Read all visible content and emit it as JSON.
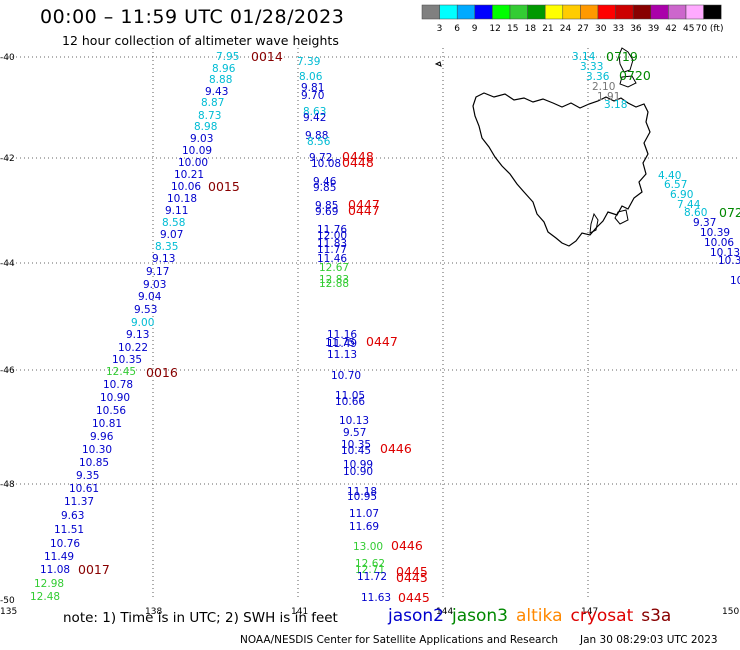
{
  "header": {
    "title": "00:00 – 11:59 UTC 01/28/2023",
    "subtitle": "12 hour collection of altimeter wave heights"
  },
  "colors": {
    "jason2": "#0000cc",
    "jason3": "#008800",
    "altika": "#ff8800",
    "cryosat": "#dd0000",
    "s3a": "#880000",
    "cyan": "#00bcd4",
    "green_light": "#33cc33",
    "gray": "#777777"
  },
  "colorbar": {
    "colors": [
      "#808080",
      "#00ffff",
      "#00aaff",
      "#0000ff",
      "#00ff00",
      "#33cc33",
      "#009900",
      "#ffff00",
      "#ffcc00",
      "#ff9900",
      "#ff0000",
      "#cc0000",
      "#880000",
      "#aa00aa",
      "#cc66cc",
      "#ffaaff",
      "#000000"
    ],
    "labels": [
      "3",
      "6",
      "9",
      "12",
      "15",
      "18",
      "21",
      "24",
      "27",
      "30",
      "33",
      "36",
      "39",
      "42",
      "45",
      "70 (ft)"
    ]
  },
  "axes": {
    "lon_ticks": [
      "135",
      "138",
      "141",
      "144",
      "147",
      "150"
    ],
    "lat_ticks": [
      "-40",
      "-42",
      "-44",
      "-46",
      "-48",
      "-50"
    ]
  },
  "tracks": {
    "track_a": [
      {
        "v": "7.95",
        "c": "cyan"
      },
      {
        "v": "8.96",
        "c": "cyan"
      },
      {
        "v": "8.88",
        "c": "cyan"
      },
      {
        "v": "9.43",
        "c": "blue"
      },
      {
        "v": "8.87",
        "c": "cyan"
      },
      {
        "v": "8.73",
        "c": "cyan"
      },
      {
        "v": "8.98",
        "c": "cyan"
      },
      {
        "v": "9.03",
        "c": "blue"
      },
      {
        "v": "10.09",
        "c": "blue"
      },
      {
        "v": "10.00",
        "c": "blue"
      },
      {
        "v": "10.21",
        "c": "blue"
      },
      {
        "v": "10.06",
        "c": "blue"
      },
      {
        "v": "10.18",
        "c": "blue"
      },
      {
        "v": "9.11",
        "c": "blue"
      },
      {
        "v": "8.58",
        "c": "cyan"
      },
      {
        "v": "9.07",
        "c": "blue"
      },
      {
        "v": "8.35",
        "c": "cyan"
      },
      {
        "v": "9.13",
        "c": "blue"
      },
      {
        "v": "9.17",
        "c": "blue"
      },
      {
        "v": "9.03",
        "c": "blue"
      },
      {
        "v": "9.04",
        "c": "blue"
      },
      {
        "v": "9.53",
        "c": "blue"
      },
      {
        "v": "9.00",
        "c": "cyan"
      },
      {
        "v": "9.13",
        "c": "blue"
      },
      {
        "v": "10.22",
        "c": "blue"
      },
      {
        "v": "10.35",
        "c": "blue"
      },
      {
        "v": "12.45",
        "c": "green"
      },
      {
        "v": "10.78",
        "c": "blue"
      },
      {
        "v": "10.90",
        "c": "blue"
      },
      {
        "v": "10.56",
        "c": "blue"
      },
      {
        "v": "10.81",
        "c": "blue"
      },
      {
        "v": "9.96",
        "c": "blue"
      },
      {
        "v": "10.30",
        "c": "blue"
      },
      {
        "v": "10.85",
        "c": "blue"
      },
      {
        "v": "9.35",
        "c": "blue"
      },
      {
        "v": "10.61",
        "c": "blue"
      },
      {
        "v": "11.37",
        "c": "blue"
      },
      {
        "v": "9.63",
        "c": "blue"
      },
      {
        "v": "11.51",
        "c": "blue"
      },
      {
        "v": "10.76",
        "c": "blue"
      },
      {
        "v": "11.49",
        "c": "blue"
      },
      {
        "v": "11.08",
        "c": "blue"
      },
      {
        "v": "12.98",
        "c": "green"
      },
      {
        "v": "12.48",
        "c": "green"
      }
    ],
    "track_a_times": [
      "0014",
      "0015",
      "0016",
      "0017"
    ],
    "track_b": [
      {
        "v": "7.39",
        "c": "cyan"
      },
      {
        "v": "8.06",
        "c": "cyan"
      },
      {
        "v": "9.81",
        "c": "blue"
      },
      {
        "v": "9.70",
        "c": "blue"
      },
      {
        "v": "8.63",
        "c": "cyan"
      },
      {
        "v": "9.42",
        "c": "blue"
      },
      {
        "v": "9.88",
        "c": "blue"
      },
      {
        "v": "8.56",
        "c": "cyan"
      },
      {
        "v": "9.72",
        "c": "blue"
      },
      {
        "v": "10.08",
        "c": "blue"
      },
      {
        "v": "9.46",
        "c": "blue"
      },
      {
        "v": "9.85",
        "c": "blue"
      },
      {
        "v": "9.85",
        "c": "blue"
      },
      {
        "v": "9.69",
        "c": "blue"
      },
      {
        "v": "11.76",
        "c": "blue"
      },
      {
        "v": "12.00",
        "c": "blue"
      },
      {
        "v": "11.83",
        "c": "blue"
      },
      {
        "v": "11.77",
        "c": "blue"
      },
      {
        "v": "11.46",
        "c": "blue"
      },
      {
        "v": "12.67",
        "c": "green"
      },
      {
        "v": "12.83",
        "c": "green"
      },
      {
        "v": "12.88",
        "c": "green"
      },
      {
        "v": "11.75",
        "c": "blue"
      },
      {
        "v": "11.16",
        "c": "blue"
      },
      {
        "v": "11.49",
        "c": "blue"
      },
      {
        "v": "11.13",
        "c": "blue"
      },
      {
        "v": "10.70",
        "c": "blue"
      },
      {
        "v": "11.05",
        "c": "blue"
      },
      {
        "v": "10.66",
        "c": "blue"
      },
      {
        "v": "10.13",
        "c": "blue"
      },
      {
        "v": "9.57",
        "c": "blue"
      },
      {
        "v": "10.35",
        "c": "blue"
      },
      {
        "v": "10.45",
        "c": "blue"
      },
      {
        "v": "10.99",
        "c": "blue"
      },
      {
        "v": "10.90",
        "c": "blue"
      },
      {
        "v": "11.18",
        "c": "blue"
      },
      {
        "v": "10.95",
        "c": "blue"
      },
      {
        "v": "11.07",
        "c": "blue"
      },
      {
        "v": "11.69",
        "c": "blue"
      },
      {
        "v": "13.00",
        "c": "green"
      },
      {
        "v": "12.62",
        "c": "green"
      },
      {
        "v": "12.71",
        "c": "green"
      },
      {
        "v": "11.72",
        "c": "blue"
      },
      {
        "v": "11.63",
        "c": "blue"
      }
    ],
    "track_b_times": [
      "0448",
      "0448",
      "0447",
      "0447",
      "0447",
      "0446",
      "0446",
      "0445",
      "0445",
      "0445"
    ],
    "track_c": [
      {
        "v": "3.14",
        "c": "cyan"
      },
      {
        "v": "3.33",
        "c": "cyan"
      },
      {
        "v": "3.36",
        "c": "cyan"
      },
      {
        "v": "2.10",
        "c": "gray"
      },
      {
        "v": "1.91",
        "c": "gray"
      },
      {
        "v": "3.18",
        "c": "cyan"
      }
    ],
    "track_c_times": [
      "0719",
      "0720"
    ],
    "track_d": [
      {
        "v": "4.40",
        "c": "cyan"
      },
      {
        "v": "6.57",
        "c": "cyan"
      },
      {
        "v": "6.90",
        "c": "cyan"
      },
      {
        "v": "7.44",
        "c": "cyan"
      },
      {
        "v": "8.60",
        "c": "cyan"
      },
      {
        "v": "9.37",
        "c": "blue"
      },
      {
        "v": "10.39",
        "c": "blue"
      },
      {
        "v": "10.06",
        "c": "blue"
      },
      {
        "v": "10.13",
        "c": "blue"
      },
      {
        "v": "10.3",
        "c": "blue"
      },
      {
        "v": "10.",
        "c": "blue"
      }
    ],
    "track_d_times": [
      "072"
    ]
  },
  "footer": {
    "note": "note: 1) Time is in UTC; 2) SWH is in feet",
    "legend": [
      "jason2",
      "jason3",
      "altika",
      "cryosat",
      "s3a"
    ],
    "credit": "NOAA/NESDIS Center for Satellite Applications and Research",
    "timestamp": "Jan 30 08:29:03 UTC 2023"
  }
}
